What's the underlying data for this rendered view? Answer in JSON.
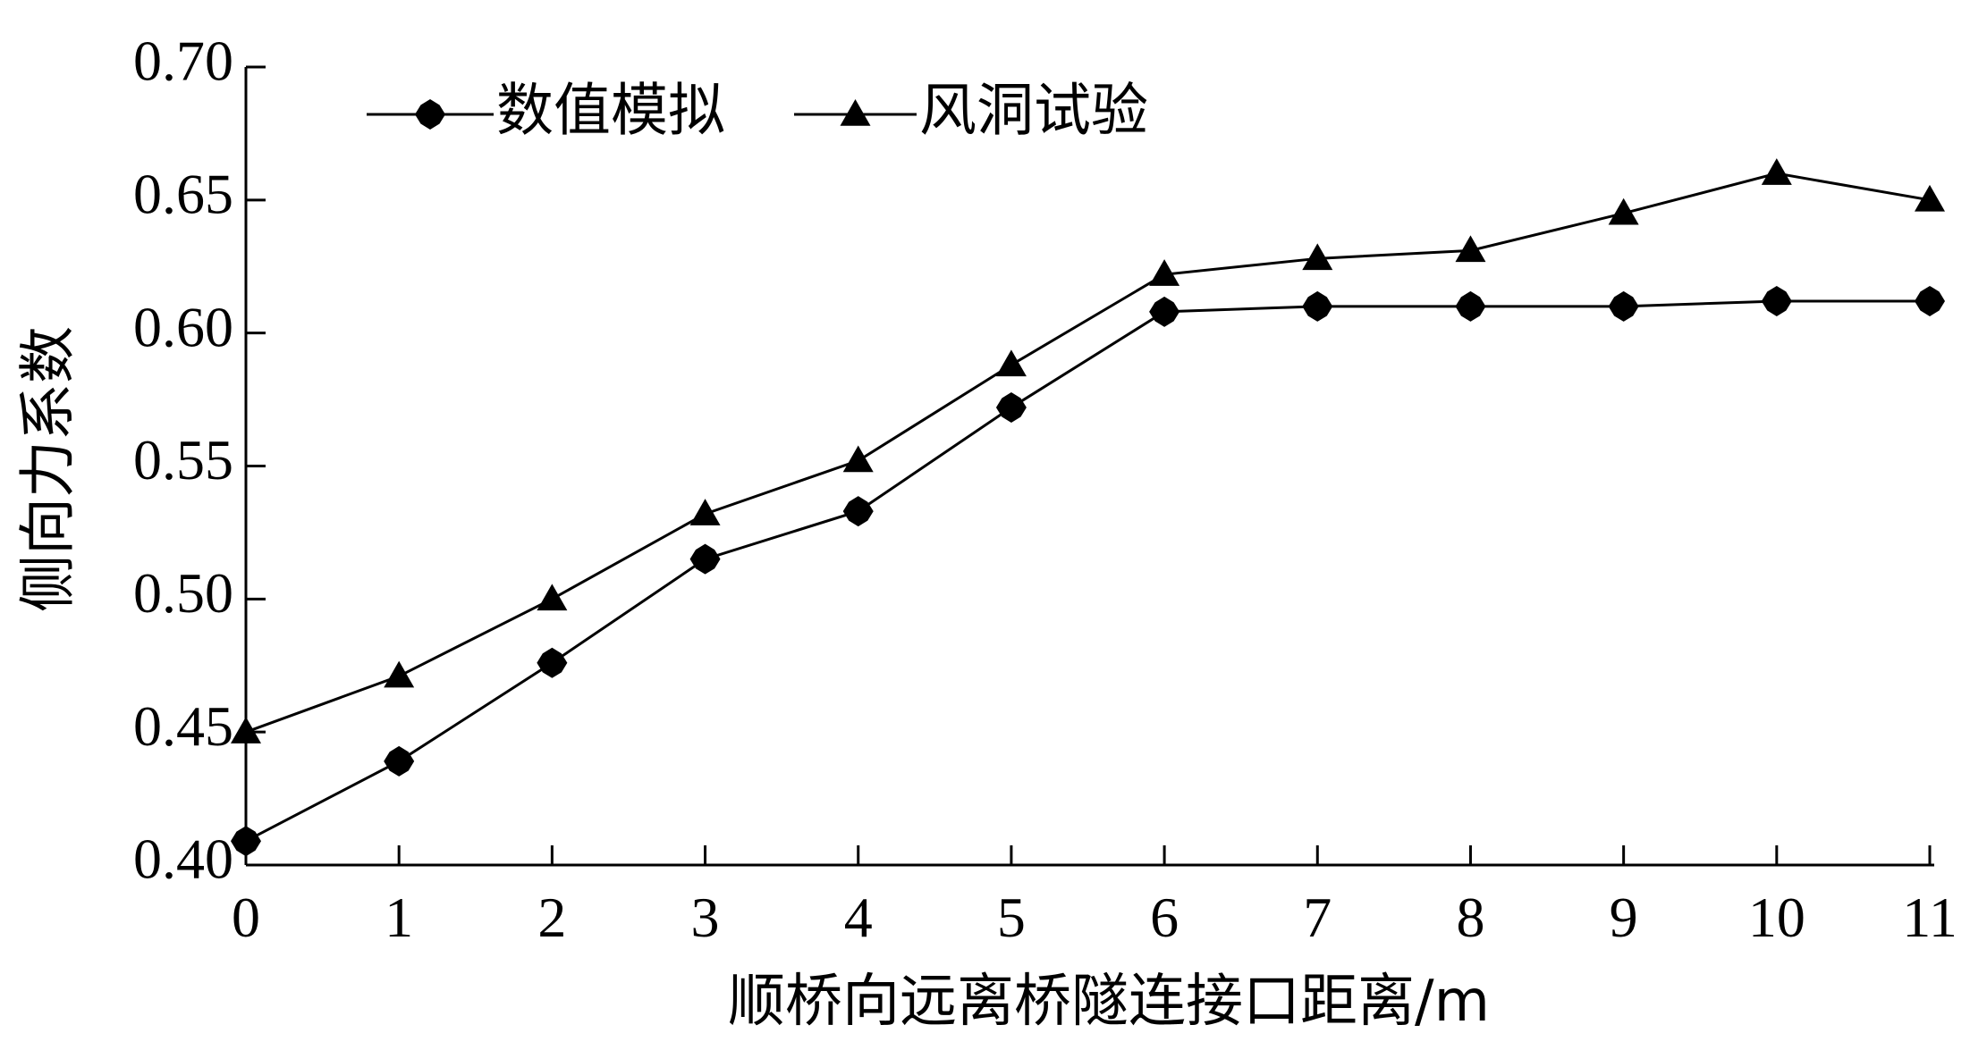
{
  "chart_data": {
    "type": "line",
    "title": "",
    "xlabel": "顺桥向远离桥隧连接口距离/m",
    "ylabel": "侧向力系数",
    "x": [
      0,
      1,
      2,
      3,
      4,
      5,
      6,
      7,
      8,
      9,
      10,
      11
    ],
    "xticks": [
      "0",
      "1",
      "2",
      "3",
      "4",
      "5",
      "6",
      "7",
      "8",
      "9",
      "10",
      "11"
    ],
    "yticks": [
      "0.40",
      "0.45",
      "0.50",
      "0.55",
      "0.60",
      "0.65",
      "0.70"
    ],
    "xlim": [
      0,
      11
    ],
    "ylim": [
      0.4,
      0.7
    ],
    "grid": false,
    "legend_position": "top-left",
    "series": [
      {
        "name": "数值模拟",
        "marker": "diamond",
        "color": "#000000",
        "values": [
          0.409,
          0.439,
          0.476,
          0.515,
          0.533,
          0.572,
          0.608,
          0.61,
          0.61,
          0.61,
          0.612,
          0.612
        ]
      },
      {
        "name": "风洞试验",
        "marker": "triangle",
        "color": "#000000",
        "values": [
          0.45,
          0.471,
          0.5,
          0.532,
          0.552,
          0.588,
          0.622,
          0.628,
          0.631,
          0.645,
          0.66,
          0.65
        ]
      }
    ]
  }
}
